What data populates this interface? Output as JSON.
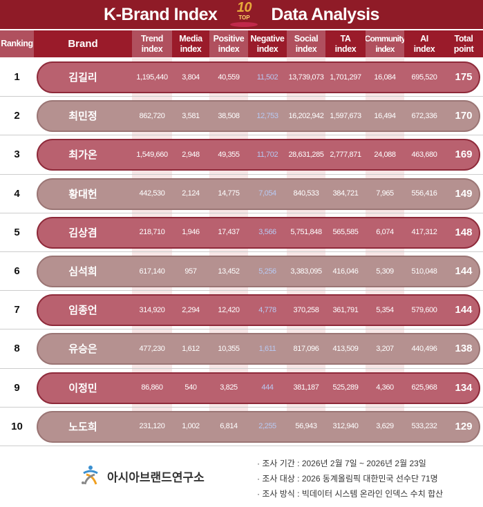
{
  "header": {
    "title_left": "K-Brand Index",
    "title_right": "Data Analysis",
    "badge_number": "10",
    "badge_text": "TOP"
  },
  "columns": [
    "Ranking",
    "Brand",
    "Trend\nindex",
    "Media\nindex",
    "Positive\nindex",
    "Negative\nindex",
    "Social\nindex",
    "TA\nindex",
    "Community\nindex",
    "AI\nindex",
    "Total\npoint"
  ],
  "rows": [
    {
      "rank": "1",
      "brand": "김길리",
      "trend": "1,195,440",
      "media": "3,804",
      "positive": "40,559",
      "negative": "11,502",
      "social": "13,739,073",
      "ta": "1,701,297",
      "community": "16,084",
      "ai": "695,520",
      "total": "175"
    },
    {
      "rank": "2",
      "brand": "최민정",
      "trend": "862,720",
      "media": "3,581",
      "positive": "38,508",
      "negative": "12,753",
      "social": "16,202,942",
      "ta": "1,597,673",
      "community": "16,494",
      "ai": "672,336",
      "total": "170"
    },
    {
      "rank": "3",
      "brand": "최가온",
      "trend": "1,549,660",
      "media": "2,948",
      "positive": "49,355",
      "negative": "11,702",
      "social": "28,631,285",
      "ta": "2,777,871",
      "community": "24,088",
      "ai": "463,680",
      "total": "169"
    },
    {
      "rank": "4",
      "brand": "황대헌",
      "trend": "442,530",
      "media": "2,124",
      "positive": "14,775",
      "negative": "7,054",
      "social": "840,533",
      "ta": "384,721",
      "community": "7,965",
      "ai": "556,416",
      "total": "149"
    },
    {
      "rank": "5",
      "brand": "김상겸",
      "trend": "218,710",
      "media": "1,946",
      "positive": "17,437",
      "negative": "3,566",
      "social": "5,751,848",
      "ta": "565,585",
      "community": "6,074",
      "ai": "417,312",
      "total": "148"
    },
    {
      "rank": "6",
      "brand": "심석희",
      "trend": "617,140",
      "media": "957",
      "positive": "13,452",
      "negative": "5,256",
      "social": "3,383,095",
      "ta": "416,046",
      "community": "5,309",
      "ai": "510,048",
      "total": "144"
    },
    {
      "rank": "7",
      "brand": "임종언",
      "trend": "314,920",
      "media": "2,294",
      "positive": "12,420",
      "negative": "4,778",
      "social": "370,258",
      "ta": "361,791",
      "community": "5,354",
      "ai": "579,600",
      "total": "144"
    },
    {
      "rank": "8",
      "brand": "유승은",
      "trend": "477,230",
      "media": "1,612",
      "positive": "10,355",
      "negative": "1,611",
      "social": "817,096",
      "ta": "413,509",
      "community": "3,207",
      "ai": "440,496",
      "total": "138"
    },
    {
      "rank": "9",
      "brand": "이정민",
      "trend": "86,860",
      "media": "540",
      "positive": "3,825",
      "negative": "444",
      "social": "381,187",
      "ta": "525,289",
      "community": "4,360",
      "ai": "625,968",
      "total": "134"
    },
    {
      "rank": "10",
      "brand": "노도희",
      "trend": "231,120",
      "media": "1,002",
      "positive": "6,814",
      "negative": "2,255",
      "social": "56,943",
      "ta": "312,940",
      "community": "3,629",
      "ai": "533,232",
      "total": "129"
    }
  ],
  "footer": {
    "org_name": "아시아브랜드연구소",
    "notes": [
      "· 조사 기간 : 2026년 2월 7일 ~ 2026년 2월 23일",
      "· 조사 대상 : 2026 동계올림픽 대한민국 선수단 71명",
      "· 조사 방식 : 빅데이터 시스템 온라인 인덱스 수치 합산"
    ]
  },
  "colors": {
    "brand_red": "#8f1b27",
    "pill_odd": "#b9616f",
    "pill_even": "#b59190",
    "negative_text": "#b8c9f2"
  }
}
